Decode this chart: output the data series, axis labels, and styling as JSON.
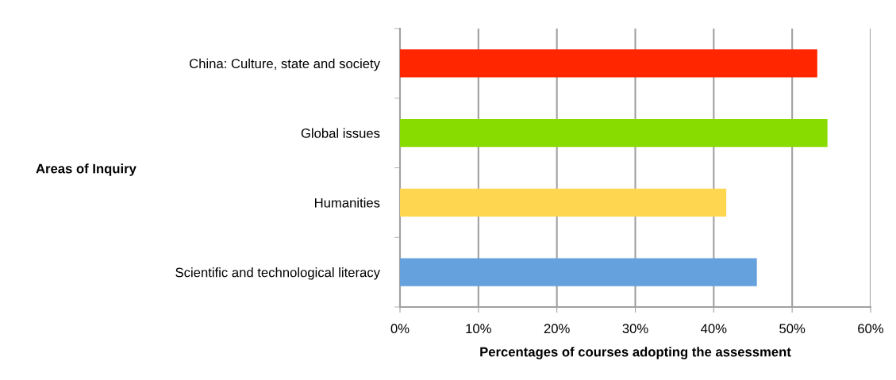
{
  "chart_data": {
    "type": "bar",
    "orientation": "horizontal",
    "xlabel": "Percentages of courses adopting the assessment",
    "ylabel": "Areas of Inquiry",
    "categories": [
      "China: Culture, state and society",
      "Global issues",
      "Humanities",
      "Scientific and technological literacy"
    ],
    "values": [
      53.2,
      54.5,
      41.6,
      45.5
    ],
    "colors": [
      "#ff2600",
      "#88dc00",
      "#ffd64f",
      "#64a1dd"
    ],
    "xlim": [
      0,
      60
    ],
    "xticks": [
      {
        "value": 0,
        "label": "0%"
      },
      {
        "value": 10,
        "label": "10%"
      },
      {
        "value": 20,
        "label": "20%"
      },
      {
        "value": 30,
        "label": "30%"
      },
      {
        "value": 40,
        "label": "40%"
      },
      {
        "value": 50,
        "label": "50%"
      },
      {
        "value": 60,
        "label": "60%"
      }
    ],
    "grid": "x",
    "legend": false
  }
}
